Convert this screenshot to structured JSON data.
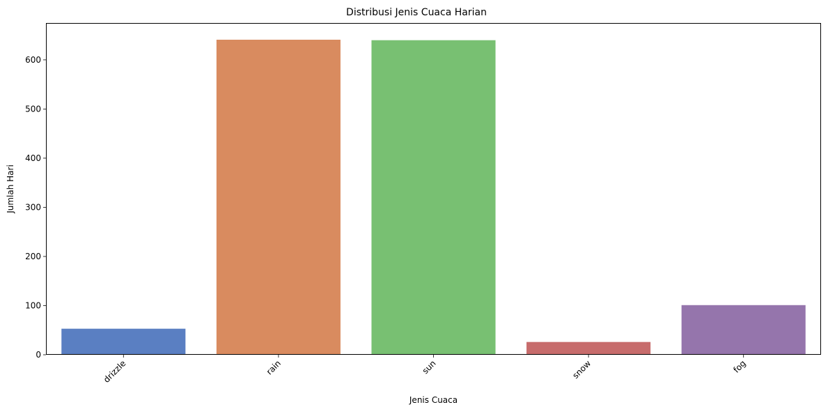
{
  "chart_data": {
    "type": "bar",
    "title": "Distribusi Jenis Cuaca Harian",
    "xlabel": "Jenis Cuaca",
    "ylabel": "Jumlah Hari",
    "categories": [
      "drizzle",
      "rain",
      "sun",
      "snow",
      "fog"
    ],
    "values": [
      53,
      641,
      640,
      26,
      101
    ],
    "colors": [
      "#5a7fc2",
      "#d98b5f",
      "#78c072",
      "#c76c6c",
      "#9575ac"
    ],
    "ylim": [
      0,
      675
    ],
    "yticks": [
      0,
      100,
      200,
      300,
      400,
      500,
      600
    ],
    "grid": false,
    "legend": "none",
    "x_tick_rotation": 45
  }
}
